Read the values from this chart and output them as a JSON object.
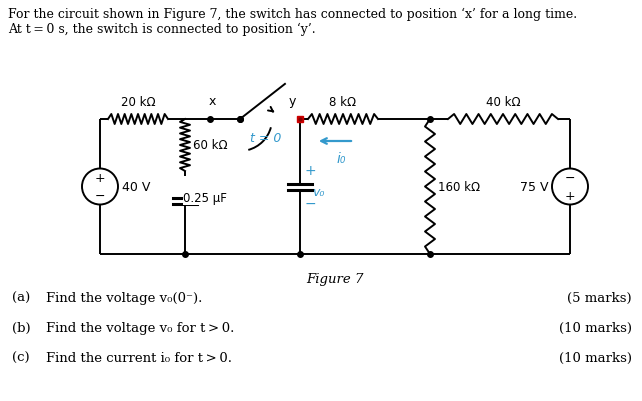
{
  "title_line1": "For the circuit shown in Figure 7, the switch has connected to position ‘x’ for a long time.",
  "title_line2": "At t = 0 s, the switch is connected to position ‘y’.",
  "figure_label": "Figure 7",
  "questions": [
    {
      "label": "(a)",
      "text": "Find the voltage v",
      "sub": "o",
      "rest": "(0⁻).",
      "marks": "(5 marks)"
    },
    {
      "label": "(b)",
      "text": "Find the voltage v",
      "sub": "o",
      "rest": " for t > 0.",
      "marks": "(10 marks)"
    },
    {
      "label": "(c)",
      "text": "Find the current i",
      "sub": "o",
      "rest": " for t > 0.",
      "marks": "(10 marks)"
    }
  ],
  "bg_color": "#ffffff",
  "text_color": "#000000",
  "circuit_color": "#000000",
  "blue_color": "#3399cc",
  "red_color": "#cc0000"
}
